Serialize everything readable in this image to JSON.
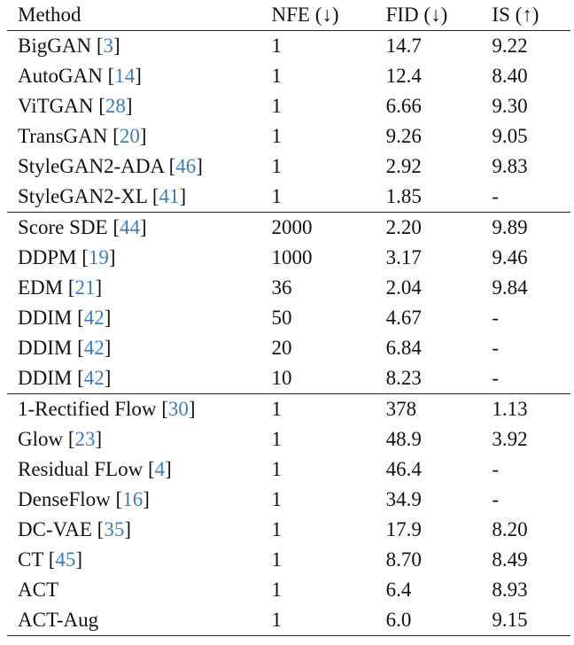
{
  "table": {
    "headers": [
      "Method",
      "NFE (↓)",
      "FID (↓)",
      "IS (↑)"
    ],
    "groups": [
      [
        {
          "method": "BigGAN",
          "ref": "3",
          "nfe": "1",
          "fid": "14.7",
          "is": "9.22"
        },
        {
          "method": "AutoGAN",
          "ref": "14",
          "nfe": "1",
          "fid": "12.4",
          "is": "8.40"
        },
        {
          "method": "ViTGAN",
          "ref": "28",
          "nfe": "1",
          "fid": "6.66",
          "is": "9.30"
        },
        {
          "method": "TransGAN",
          "ref": "20",
          "nfe": "1",
          "fid": "9.26",
          "is": "9.05"
        },
        {
          "method": "StyleGAN2-ADA",
          "ref": "46",
          "nfe": "1",
          "fid": "2.92",
          "is": "9.83",
          "bold_is": true
        },
        {
          "method": "StyleGAN2-XL",
          "ref": "41",
          "nfe": "1",
          "fid": "1.85",
          "is": "-",
          "bold_fid": true
        }
      ],
      [
        {
          "method": "Score SDE",
          "ref": "44",
          "nfe": "2000",
          "fid": "2.20",
          "is": "9.89",
          "bold_is": true
        },
        {
          "method": "DDPM",
          "ref": "19",
          "nfe": "1000",
          "fid": "3.17",
          "is": "9.46"
        },
        {
          "method": "EDM",
          "ref": "21",
          "nfe": "36",
          "fid": "2.04",
          "is": "9.84",
          "bold_fid": true
        },
        {
          "method": "DDIM",
          "ref": "42",
          "nfe": "50",
          "fid": "4.67",
          "is": "-"
        },
        {
          "method": "DDIM",
          "ref": "42",
          "nfe": "20",
          "fid": "6.84",
          "is": "-"
        },
        {
          "method": "DDIM",
          "ref": "42",
          "nfe": "10",
          "fid": "8.23",
          "is": "-"
        }
      ],
      [
        {
          "method": "1-Rectified Flow",
          "ref": "30",
          "nfe": "1",
          "fid": "378",
          "is": "1.13"
        },
        {
          "method": "Glow",
          "ref": "23",
          "nfe": "1",
          "fid": "48.9",
          "is": "3.92"
        },
        {
          "method": "Residual FLow",
          "ref": "4",
          "nfe": "1",
          "fid": "46.4",
          "is": "-"
        },
        {
          "method": "DenseFlow",
          "ref": "16",
          "nfe": "1",
          "fid": "34.9",
          "is": "-"
        },
        {
          "method": "DC-VAE",
          "ref": "35",
          "nfe": "1",
          "fid": "17.9",
          "is": "8.20"
        },
        {
          "method": "CT",
          "ref": "45",
          "nfe": "1",
          "fid": "8.70",
          "is": "8.49"
        },
        {
          "method": "ACT",
          "ref": "",
          "nfe": "1",
          "fid": "6.4",
          "is": "8.93"
        },
        {
          "method": "ACT-Aug",
          "ref": "",
          "nfe": "1",
          "fid": "6.0",
          "is": "9.15",
          "bold_fid": true,
          "bold_is": true
        }
      ]
    ]
  }
}
